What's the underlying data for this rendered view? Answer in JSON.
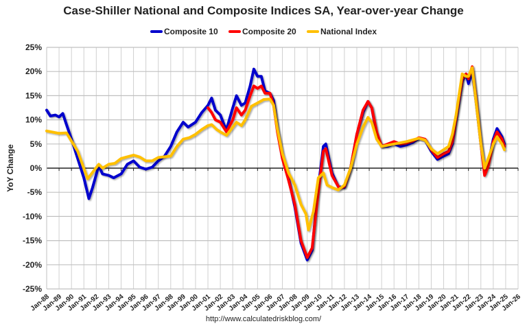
{
  "chart_data": {
    "type": "line",
    "title": "Case-Shiller National and Composite Indices SA, Year-over-year Change",
    "ylabel": "YoY Change",
    "xlabel": "",
    "ylim": [
      -25,
      25
    ],
    "xlim": [
      1988,
      2026
    ],
    "yticks": [
      "-25%",
      "-20%",
      "-15%",
      "-10%",
      "-5%",
      "0%",
      "5%",
      "10%",
      "15%",
      "20%",
      "25%"
    ],
    "xticks": [
      "Jan-88",
      "Jan-89",
      "Jan-90",
      "Jan-91",
      "Jan-92",
      "Jan-93",
      "Jan-94",
      "Jan-95",
      "Jan-96",
      "Jan-97",
      "Jan-98",
      "Jan-99",
      "Jan-00",
      "Jan-01",
      "Jan-02",
      "Jan-03",
      "Jan-04",
      "Jan-05",
      "Jan-06",
      "Jan-07",
      "Jan-08",
      "Jan-09",
      "Jan-10",
      "Jan-11",
      "Jan-12",
      "Jan-13",
      "Jan-14",
      "Jan-15",
      "Jan-16",
      "Jan-17",
      "Jan-18",
      "Jan-19",
      "Jan-20",
      "Jan-21",
      "Jan-22",
      "Jan-23",
      "Jan-24",
      "Jan-25",
      "Jan-26"
    ],
    "grid": true,
    "legend_position": "top",
    "series": [
      {
        "name": "Composite 10",
        "color": "#0000CC",
        "x": [
          1988.0,
          1988.3,
          1988.7,
          1989.0,
          1989.3,
          1989.6,
          1990.0,
          1990.5,
          1991.0,
          1991.4,
          1991.7,
          1992.2,
          1992.5,
          1993.0,
          1993.4,
          1994.0,
          1994.5,
          1995.0,
          1995.5,
          1996.0,
          1996.5,
          1997.0,
          1997.5,
          1998.0,
          1998.5,
          1999.0,
          1999.4,
          2000.0,
          2000.5,
          2001.0,
          2001.3,
          2001.6,
          2002.0,
          2002.3,
          2002.5,
          2003.0,
          2003.3,
          2003.7,
          2004.0,
          2004.4,
          2004.7,
          2005.0,
          2005.3,
          2005.6,
          2006.0,
          2006.3,
          2006.6,
          2007.0,
          2007.5,
          2008.0,
          2008.5,
          2009.0,
          2009.4,
          2009.8,
          2010.3,
          2010.5,
          2011.0,
          2011.5,
          2012.0,
          2012.5,
          2013.0,
          2013.5,
          2013.9,
          2014.2,
          2014.6,
          2015.0,
          2015.5,
          2016.0,
          2016.5,
          2017.0,
          2017.5,
          2018.0,
          2018.5,
          2019.0,
          2019.5,
          2020.0,
          2020.4,
          2020.7,
          2021.0,
          2021.5,
          2021.8,
          2022.0,
          2022.3,
          2022.6,
          2023.0,
          2023.3,
          2023.6,
          2024.0,
          2024.3,
          2024.7,
          2024.9
        ],
        "values": [
          12,
          10.8,
          11,
          10.6,
          11.3,
          9,
          6,
          2,
          -2,
          -6.3,
          -4,
          0.5,
          -1.2,
          -1.5,
          -2,
          -1.2,
          0.8,
          1.5,
          0.2,
          -0.2,
          0.2,
          1.5,
          2.5,
          4.5,
          7.5,
          9.5,
          8.5,
          9.5,
          11.5,
          13,
          14.5,
          12,
          11,
          9,
          8,
          12.5,
          15,
          13,
          13.5,
          17,
          20.5,
          19,
          19,
          16,
          15.5,
          14,
          8,
          2.5,
          -2,
          -8,
          -15.5,
          -19,
          -17,
          -6,
          4.5,
          5,
          -1,
          -3.8,
          -4,
          0,
          7,
          11.5,
          13.8,
          12.5,
          7,
          4.5,
          4.5,
          5,
          4.5,
          4.8,
          5.3,
          6.2,
          5.8,
          3.5,
          1.8,
          2.5,
          3,
          5,
          10,
          18,
          19.5,
          17.5,
          20,
          14,
          5,
          -1,
          1,
          6,
          8.2,
          6.5,
          5
        ]
      },
      {
        "name": "Composite 20",
        "color": "#FF0000",
        "x": [
          2001.0,
          2001.3,
          2001.6,
          2002.0,
          2002.5,
          2003.0,
          2003.3,
          2003.7,
          2004.0,
          2004.4,
          2004.7,
          2005.0,
          2005.3,
          2005.6,
          2006.0,
          2006.3,
          2006.6,
          2007.0,
          2007.5,
          2008.0,
          2008.5,
          2009.0,
          2009.4,
          2009.8,
          2010.3,
          2010.5,
          2011.0,
          2011.6,
          2012.0,
          2012.5,
          2013.0,
          2013.5,
          2013.9,
          2014.2,
          2014.6,
          2015.0,
          2015.5,
          2016.0,
          2016.5,
          2017.0,
          2017.5,
          2018.0,
          2018.5,
          2019.0,
          2019.5,
          2020.0,
          2020.4,
          2020.7,
          2021.0,
          2021.5,
          2021.8,
          2022.0,
          2022.3,
          2022.6,
          2023.0,
          2023.3,
          2023.6,
          2024.0,
          2024.3,
          2024.7,
          2024.9
        ],
        "values": [
          12.5,
          11.5,
          10,
          9.5,
          7.5,
          10,
          12.5,
          11,
          12,
          15,
          17,
          16.5,
          17,
          15.5,
          15.5,
          13,
          7.5,
          2,
          -2.5,
          -7.5,
          -15,
          -18.5,
          -16.5,
          -7,
          3.5,
          4,
          -1.5,
          -4.2,
          -3.8,
          0,
          7,
          12,
          13.8,
          12.5,
          7.5,
          4.5,
          5,
          5.5,
          5,
          5.2,
          5.6,
          6.3,
          6,
          3.8,
          2.2,
          3,
          3.5,
          5.5,
          10.5,
          18.5,
          19.5,
          18.5,
          21,
          14.5,
          5,
          -1.5,
          0.5,
          5.5,
          7.5,
          6,
          4.5
        ]
      },
      {
        "name": "National Index",
        "color": "#FFC000",
        "x": [
          1988.0,
          1989.0,
          1989.6,
          1990.5,
          1991.3,
          1992.2,
          1992.5,
          1993.0,
          1993.5,
          1994.0,
          1995.0,
          1995.5,
          1996.0,
          1996.5,
          1997.0,
          1998.0,
          1998.5,
          1999.0,
          1999.5,
          2000.0,
          2000.5,
          2001.0,
          2001.3,
          2001.7,
          2002.0,
          2002.5,
          2003.0,
          2003.3,
          2003.7,
          2004.0,
          2004.5,
          2005.0,
          2005.5,
          2006.0,
          2006.3,
          2006.6,
          2007.0,
          2007.5,
          2008.0,
          2008.5,
          2008.9,
          2009.1,
          2009.5,
          2009.9,
          2010.3,
          2010.6,
          2011.0,
          2011.5,
          2012.0,
          2012.5,
          2013.0,
          2013.5,
          2013.9,
          2014.2,
          2014.6,
          2015.0,
          2016.0,
          2017.0,
          2018.0,
          2018.5,
          2019.0,
          2019.5,
          2020.0,
          2020.4,
          2020.7,
          2021.0,
          2021.5,
          2021.8,
          2022.0,
          2022.3,
          2022.6,
          2023.0,
          2023.3,
          2023.6,
          2024.0,
          2024.3,
          2024.7,
          2024.9
        ],
        "values": [
          7.7,
          7.2,
          7.3,
          3.5,
          -2.2,
          0.8,
          0,
          0.8,
          1,
          2,
          2.7,
          2.3,
          1.5,
          1.5,
          2.2,
          2.5,
          4.5,
          6,
          6.3,
          7,
          8,
          8.8,
          9,
          8,
          7.5,
          6.8,
          8.5,
          9.5,
          8.8,
          10,
          12.8,
          13.5,
          14.2,
          14.3,
          13,
          8,
          3,
          -1,
          -3.5,
          -7.5,
          -9.5,
          -12.8,
          -9,
          -2,
          -1,
          -3.5,
          -4,
          -4.5,
          -3.5,
          0,
          5,
          8.5,
          10.5,
          9.5,
          6,
          4.5,
          5,
          5.5,
          6.2,
          5.8,
          4,
          3,
          3.8,
          4.5,
          7,
          11,
          19.5,
          19,
          19,
          20.8,
          14,
          5,
          0,
          2,
          5,
          6.5,
          5,
          3.8
        ]
      }
    ]
  },
  "source": "http://www.calculatedriskblog.com/"
}
